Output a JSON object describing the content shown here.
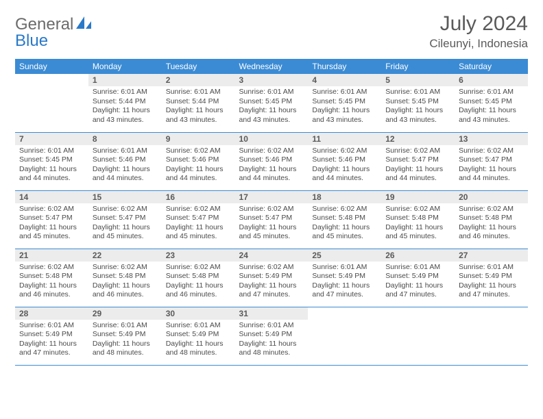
{
  "colors": {
    "header_blue": "#3b8bd4",
    "logo_blue": "#2979c9",
    "logo_gray": "#6b6b6b",
    "text_gray": "#5a5a5a",
    "cell_text": "#4a4a4a",
    "daynum_bg": "#ececec",
    "border": "#3b8bd4",
    "background": "#ffffff"
  },
  "typography": {
    "title_size_pt": 30,
    "location_size_pt": 17,
    "header_cell_size_pt": 12,
    "body_size_pt": 10.5,
    "font_family": "Arial"
  },
  "logo": {
    "general": "General",
    "blue": "Blue"
  },
  "title": "July 2024",
  "location": "Cileunyi, Indonesia",
  "weekdays": [
    "Sunday",
    "Monday",
    "Tuesday",
    "Wednesday",
    "Thursday",
    "Friday",
    "Saturday"
  ],
  "weeks": [
    [
      null,
      {
        "n": "1",
        "sr": "Sunrise: 6:01 AM",
        "ss": "Sunset: 5:44 PM",
        "d1": "Daylight: 11 hours",
        "d2": "and 43 minutes."
      },
      {
        "n": "2",
        "sr": "Sunrise: 6:01 AM",
        "ss": "Sunset: 5:44 PM",
        "d1": "Daylight: 11 hours",
        "d2": "and 43 minutes."
      },
      {
        "n": "3",
        "sr": "Sunrise: 6:01 AM",
        "ss": "Sunset: 5:45 PM",
        "d1": "Daylight: 11 hours",
        "d2": "and 43 minutes."
      },
      {
        "n": "4",
        "sr": "Sunrise: 6:01 AM",
        "ss": "Sunset: 5:45 PM",
        "d1": "Daylight: 11 hours",
        "d2": "and 43 minutes."
      },
      {
        "n": "5",
        "sr": "Sunrise: 6:01 AM",
        "ss": "Sunset: 5:45 PM",
        "d1": "Daylight: 11 hours",
        "d2": "and 43 minutes."
      },
      {
        "n": "6",
        "sr": "Sunrise: 6:01 AM",
        "ss": "Sunset: 5:45 PM",
        "d1": "Daylight: 11 hours",
        "d2": "and 43 minutes."
      }
    ],
    [
      {
        "n": "7",
        "sr": "Sunrise: 6:01 AM",
        "ss": "Sunset: 5:45 PM",
        "d1": "Daylight: 11 hours",
        "d2": "and 44 minutes."
      },
      {
        "n": "8",
        "sr": "Sunrise: 6:01 AM",
        "ss": "Sunset: 5:46 PM",
        "d1": "Daylight: 11 hours",
        "d2": "and 44 minutes."
      },
      {
        "n": "9",
        "sr": "Sunrise: 6:02 AM",
        "ss": "Sunset: 5:46 PM",
        "d1": "Daylight: 11 hours",
        "d2": "and 44 minutes."
      },
      {
        "n": "10",
        "sr": "Sunrise: 6:02 AM",
        "ss": "Sunset: 5:46 PM",
        "d1": "Daylight: 11 hours",
        "d2": "and 44 minutes."
      },
      {
        "n": "11",
        "sr": "Sunrise: 6:02 AM",
        "ss": "Sunset: 5:46 PM",
        "d1": "Daylight: 11 hours",
        "d2": "and 44 minutes."
      },
      {
        "n": "12",
        "sr": "Sunrise: 6:02 AM",
        "ss": "Sunset: 5:47 PM",
        "d1": "Daylight: 11 hours",
        "d2": "and 44 minutes."
      },
      {
        "n": "13",
        "sr": "Sunrise: 6:02 AM",
        "ss": "Sunset: 5:47 PM",
        "d1": "Daylight: 11 hours",
        "d2": "and 44 minutes."
      }
    ],
    [
      {
        "n": "14",
        "sr": "Sunrise: 6:02 AM",
        "ss": "Sunset: 5:47 PM",
        "d1": "Daylight: 11 hours",
        "d2": "and 45 minutes."
      },
      {
        "n": "15",
        "sr": "Sunrise: 6:02 AM",
        "ss": "Sunset: 5:47 PM",
        "d1": "Daylight: 11 hours",
        "d2": "and 45 minutes."
      },
      {
        "n": "16",
        "sr": "Sunrise: 6:02 AM",
        "ss": "Sunset: 5:47 PM",
        "d1": "Daylight: 11 hours",
        "d2": "and 45 minutes."
      },
      {
        "n": "17",
        "sr": "Sunrise: 6:02 AM",
        "ss": "Sunset: 5:47 PM",
        "d1": "Daylight: 11 hours",
        "d2": "and 45 minutes."
      },
      {
        "n": "18",
        "sr": "Sunrise: 6:02 AM",
        "ss": "Sunset: 5:48 PM",
        "d1": "Daylight: 11 hours",
        "d2": "and 45 minutes."
      },
      {
        "n": "19",
        "sr": "Sunrise: 6:02 AM",
        "ss": "Sunset: 5:48 PM",
        "d1": "Daylight: 11 hours",
        "d2": "and 45 minutes."
      },
      {
        "n": "20",
        "sr": "Sunrise: 6:02 AM",
        "ss": "Sunset: 5:48 PM",
        "d1": "Daylight: 11 hours",
        "d2": "and 46 minutes."
      }
    ],
    [
      {
        "n": "21",
        "sr": "Sunrise: 6:02 AM",
        "ss": "Sunset: 5:48 PM",
        "d1": "Daylight: 11 hours",
        "d2": "and 46 minutes."
      },
      {
        "n": "22",
        "sr": "Sunrise: 6:02 AM",
        "ss": "Sunset: 5:48 PM",
        "d1": "Daylight: 11 hours",
        "d2": "and 46 minutes."
      },
      {
        "n": "23",
        "sr": "Sunrise: 6:02 AM",
        "ss": "Sunset: 5:48 PM",
        "d1": "Daylight: 11 hours",
        "d2": "and 46 minutes."
      },
      {
        "n": "24",
        "sr": "Sunrise: 6:02 AM",
        "ss": "Sunset: 5:49 PM",
        "d1": "Daylight: 11 hours",
        "d2": "and 47 minutes."
      },
      {
        "n": "25",
        "sr": "Sunrise: 6:01 AM",
        "ss": "Sunset: 5:49 PM",
        "d1": "Daylight: 11 hours",
        "d2": "and 47 minutes."
      },
      {
        "n": "26",
        "sr": "Sunrise: 6:01 AM",
        "ss": "Sunset: 5:49 PM",
        "d1": "Daylight: 11 hours",
        "d2": "and 47 minutes."
      },
      {
        "n": "27",
        "sr": "Sunrise: 6:01 AM",
        "ss": "Sunset: 5:49 PM",
        "d1": "Daylight: 11 hours",
        "d2": "and 47 minutes."
      }
    ],
    [
      {
        "n": "28",
        "sr": "Sunrise: 6:01 AM",
        "ss": "Sunset: 5:49 PM",
        "d1": "Daylight: 11 hours",
        "d2": "and 47 minutes."
      },
      {
        "n": "29",
        "sr": "Sunrise: 6:01 AM",
        "ss": "Sunset: 5:49 PM",
        "d1": "Daylight: 11 hours",
        "d2": "and 48 minutes."
      },
      {
        "n": "30",
        "sr": "Sunrise: 6:01 AM",
        "ss": "Sunset: 5:49 PM",
        "d1": "Daylight: 11 hours",
        "d2": "and 48 minutes."
      },
      {
        "n": "31",
        "sr": "Sunrise: 6:01 AM",
        "ss": "Sunset: 5:49 PM",
        "d1": "Daylight: 11 hours",
        "d2": "and 48 minutes."
      },
      null,
      null,
      null
    ]
  ]
}
